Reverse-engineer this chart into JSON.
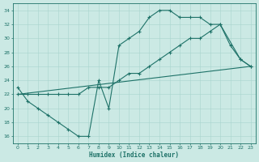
{
  "xlabel": "Humidex (Indice chaleur)",
  "xlim": [
    -0.5,
    23.5
  ],
  "ylim": [
    15.0,
    35.0
  ],
  "yticks": [
    16,
    18,
    20,
    22,
    24,
    26,
    28,
    30,
    32,
    34
  ],
  "xticks": [
    0,
    1,
    2,
    3,
    4,
    5,
    6,
    7,
    8,
    9,
    10,
    11,
    12,
    13,
    14,
    15,
    16,
    17,
    18,
    19,
    20,
    21,
    22,
    23
  ],
  "bg_color": "#cbe9e4",
  "grid_color": "#a8d5ce",
  "line_color": "#1e7268",
  "line1_x": [
    0,
    1,
    2,
    3,
    4,
    5,
    6,
    7,
    8,
    9,
    10,
    11,
    12,
    13,
    14,
    15,
    16,
    17,
    18,
    19,
    20,
    21,
    22,
    23
  ],
  "line1_y": [
    23,
    21,
    20,
    19,
    18,
    17,
    16,
    16,
    24,
    20,
    29,
    30,
    31,
    33,
    34,
    34,
    33,
    33,
    33,
    32,
    32,
    29,
    27,
    26
  ],
  "line2_x": [
    0,
    1,
    2,
    3,
    4,
    5,
    6,
    7,
    8,
    9,
    10,
    11,
    12,
    13,
    14,
    15,
    16,
    17,
    18,
    19,
    20,
    22,
    23
  ],
  "line2_y": [
    22,
    22,
    22,
    22,
    22,
    22,
    22,
    23,
    23,
    23,
    24,
    25,
    25,
    26,
    27,
    28,
    29,
    30,
    30,
    31,
    32,
    27,
    26
  ],
  "line3_x": [
    0,
    23
  ],
  "line3_y": [
    22,
    26
  ]
}
